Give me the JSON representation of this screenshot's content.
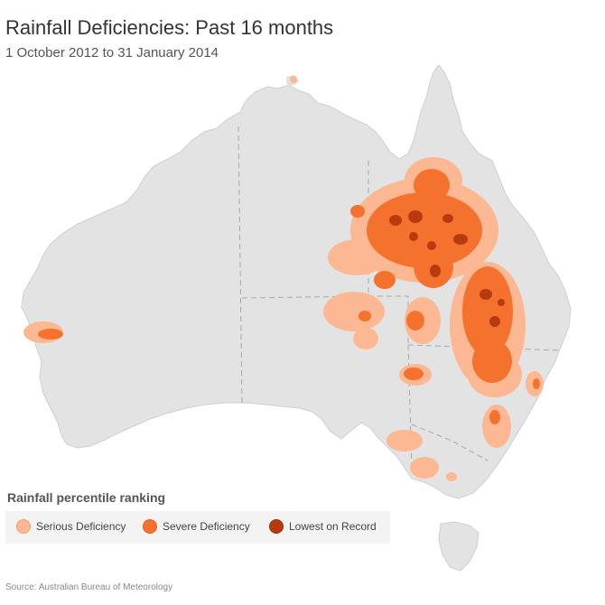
{
  "header": {
    "title": "Rainfall Deficiencies: Past 16 months",
    "subtitle": "1 October 2012 to 31 January 2014"
  },
  "legend": {
    "title": "Rainfall percentile ranking",
    "items": [
      {
        "label": "Serious Deficiency",
        "color": "#fbb892",
        "border": "#f59a6d"
      },
      {
        "label": "Severe Deficiency",
        "color": "#f5722e",
        "border": "#e25c1c"
      },
      {
        "label": "Lowest on Record",
        "color": "#b93a0e",
        "border": "#9a2e08"
      }
    ]
  },
  "map": {
    "land_color": "#e3e3e3",
    "border_color": "#a8a8a8",
    "serious_color": "#fbb892",
    "severe_color": "#f5722e",
    "lowest_color": "#b93a0e"
  },
  "footer": {
    "source": "Source: Australian Bureau of Meteorology"
  }
}
